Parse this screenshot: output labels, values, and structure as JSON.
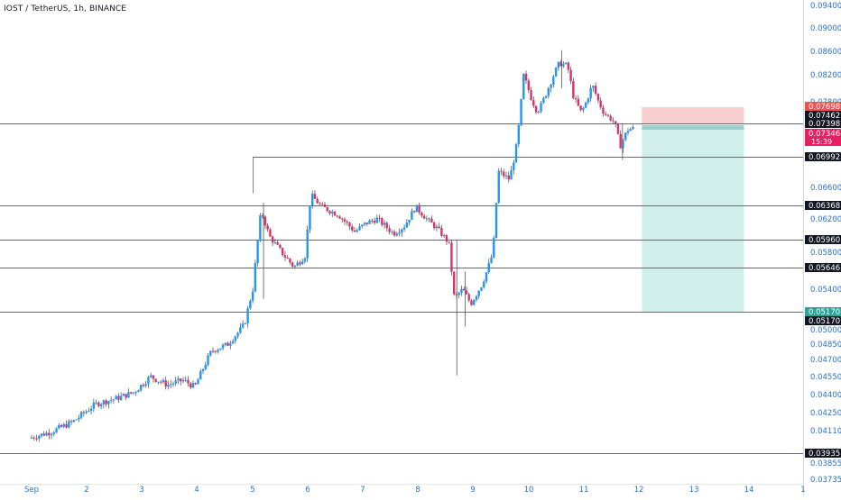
{
  "header": {
    "title": "IOST / TetherUS, 1h, BINANCE"
  },
  "colors": {
    "background": "#ffffff",
    "up_candle": "#2196f3",
    "down_candle": "#d6336c",
    "axis_text": "#2a6fc2",
    "hline": "#6b6b6b",
    "stop_zone": "#f7c7c7",
    "target_zone": "#cdeee9",
    "label_black": "#131722",
    "label_red": "#ef5350",
    "label_price": "#e91e63",
    "label_teal": "#26a69a"
  },
  "chart_data": {
    "type": "candlestick",
    "title": "IOST / TetherUS, 1h, BINANCE",
    "y_axis": {
      "ticks": [
        "0.09400",
        "0.09000",
        "0.08600",
        "0.08200",
        "0.07800",
        "0.06600",
        "0.06200",
        "0.05800",
        "0.05400",
        "0.05000",
        "0.04850",
        "0.04700",
        "0.04550",
        "0.04400",
        "0.04250",
        "0.04110",
        "0.03855",
        "0.03735"
      ],
      "scale": "log"
    },
    "x_axis": {
      "ticks": [
        "Sep",
        "2",
        "3",
        "4",
        "5",
        "6",
        "7",
        "8",
        "9",
        "10",
        "11",
        "12",
        "13",
        "14",
        "1"
      ]
    },
    "price_labels": [
      {
        "value": "0.07698",
        "kind": "red"
      },
      {
        "value": "0.07462",
        "kind": "black"
      },
      {
        "value": "0.07398",
        "kind": "black"
      },
      {
        "value": "0.07346",
        "kind": "current",
        "countdown": "15:39"
      },
      {
        "value": "0.06992",
        "kind": "black"
      },
      {
        "value": "0.06368",
        "kind": "black"
      },
      {
        "value": "0.05960",
        "kind": "black"
      },
      {
        "value": "0.05646",
        "kind": "black"
      },
      {
        "value": "0.05170",
        "kind": "teal"
      },
      {
        "value": "0.05170",
        "kind": "black"
      },
      {
        "value": "0.03935",
        "kind": "black"
      }
    ],
    "horizontal_lines": [
      0.07398,
      0.06992,
      0.06368,
      0.0596,
      0.05646,
      0.0517,
      0.03935
    ],
    "position": {
      "type": "short",
      "entry": 0.07398,
      "stop": 0.07698,
      "target": 0.0517,
      "start_date": "Sep 11",
      "end_date": "Sep 12.8"
    },
    "price_path": [
      {
        "t": 0.0,
        "p": 0.0405
      },
      {
        "t": 0.4,
        "p": 0.041
      },
      {
        "t": 0.8,
        "p": 0.0418
      },
      {
        "t": 1.2,
        "p": 0.0432
      },
      {
        "t": 1.6,
        "p": 0.0437
      },
      {
        "t": 1.9,
        "p": 0.0442
      },
      {
        "t": 2.2,
        "p": 0.0455
      },
      {
        "t": 2.5,
        "p": 0.0448
      },
      {
        "t": 2.8,
        "p": 0.0452
      },
      {
        "t": 3.0,
        "p": 0.0446
      },
      {
        "t": 3.3,
        "p": 0.0478
      },
      {
        "t": 3.6,
        "p": 0.0485
      },
      {
        "t": 3.9,
        "p": 0.0505
      },
      {
        "t": 4.05,
        "p": 0.054
      },
      {
        "t": 4.2,
        "p": 0.063
      },
      {
        "t": 4.35,
        "p": 0.06
      },
      {
        "t": 4.6,
        "p": 0.0578
      },
      {
        "t": 4.8,
        "p": 0.0565
      },
      {
        "t": 5.0,
        "p": 0.0577
      },
      {
        "t": 5.1,
        "p": 0.065
      },
      {
        "t": 5.3,
        "p": 0.0635
      },
      {
        "t": 5.6,
        "p": 0.0625
      },
      {
        "t": 5.9,
        "p": 0.0605
      },
      {
        "t": 6.1,
        "p": 0.0615
      },
      {
        "t": 6.3,
        "p": 0.062
      },
      {
        "t": 6.6,
        "p": 0.0603
      },
      {
        "t": 6.8,
        "p": 0.0612
      },
      {
        "t": 7.0,
        "p": 0.0635
      },
      {
        "t": 7.2,
        "p": 0.062
      },
      {
        "t": 7.4,
        "p": 0.0608
      },
      {
        "t": 7.6,
        "p": 0.0592
      },
      {
        "t": 7.7,
        "p": 0.053
      },
      {
        "t": 7.85,
        "p": 0.054
      },
      {
        "t": 8.0,
        "p": 0.0525
      },
      {
        "t": 8.2,
        "p": 0.0545
      },
      {
        "t": 8.4,
        "p": 0.058
      },
      {
        "t": 8.5,
        "p": 0.068
      },
      {
        "t": 8.7,
        "p": 0.067
      },
      {
        "t": 8.85,
        "p": 0.072
      },
      {
        "t": 8.95,
        "p": 0.082
      },
      {
        "t": 9.2,
        "p": 0.076
      },
      {
        "t": 9.4,
        "p": 0.08
      },
      {
        "t": 9.6,
        "p": 0.084
      },
      {
        "t": 9.75,
        "p": 0.0835
      },
      {
        "t": 9.85,
        "p": 0.079
      },
      {
        "t": 10.0,
        "p": 0.076
      },
      {
        "t": 10.2,
        "p": 0.0805
      },
      {
        "t": 10.4,
        "p": 0.076
      },
      {
        "t": 10.6,
        "p": 0.0742
      },
      {
        "t": 10.7,
        "p": 0.0712
      },
      {
        "t": 10.85,
        "p": 0.0733
      }
    ]
  }
}
